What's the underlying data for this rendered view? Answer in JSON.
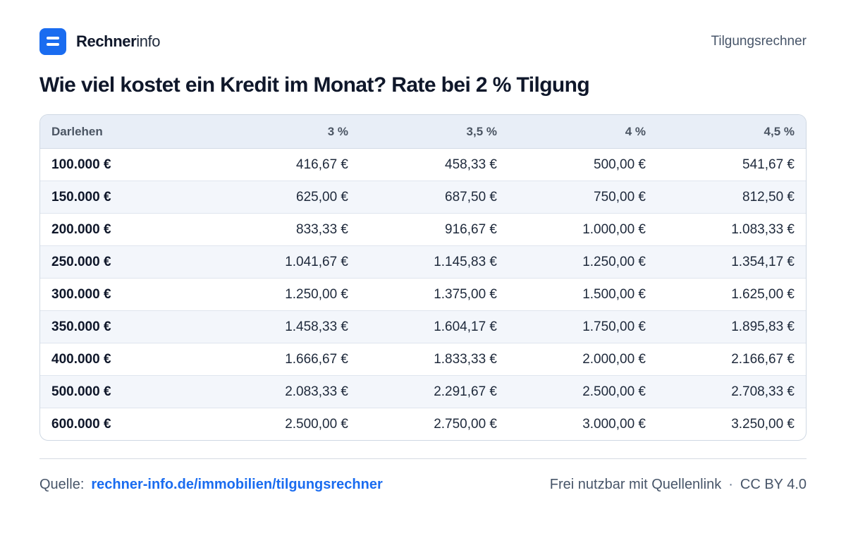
{
  "brand": {
    "name_bold": "Rechner",
    "name_light": "info",
    "icon": "menu-lines-icon"
  },
  "header": {
    "right_label": "Tilgungsrechner"
  },
  "title": "Wie viel kostet ein Kredit im Monat? Rate bei 2 % Tilgung",
  "table": {
    "columns": [
      "Darlehen",
      "3 %",
      "3,5 %",
      "4 %",
      "4,5 %"
    ],
    "rows": [
      [
        "100.000 €",
        "416,67 €",
        "458,33 €",
        "500,00 €",
        "541,67 €"
      ],
      [
        "150.000 €",
        "625,00 €",
        "687,50 €",
        "750,00 €",
        "812,50 €"
      ],
      [
        "200.000 €",
        "833,33 €",
        "916,67 €",
        "1.000,00 €",
        "1.083,33 €"
      ],
      [
        "250.000 €",
        "1.041,67 €",
        "1.145,83 €",
        "1.250,00 €",
        "1.354,17 €"
      ],
      [
        "300.000 €",
        "1.250,00 €",
        "1.375,00 €",
        "1.500,00 €",
        "1.625,00 €"
      ],
      [
        "350.000 €",
        "1.458,33 €",
        "1.604,17 €",
        "1.750,00 €",
        "1.895,83 €"
      ],
      [
        "400.000 €",
        "1.666,67 €",
        "1.833,33 €",
        "2.000,00 €",
        "2.166,67 €"
      ],
      [
        "500.000 €",
        "2.083,33 €",
        "2.291,67 €",
        "2.500,00 €",
        "2.708,33 €"
      ],
      [
        "600.000 €",
        "2.500,00 €",
        "2.750,00 €",
        "3.000,00 €",
        "3.250,00 €"
      ]
    ]
  },
  "footer": {
    "source_label": "Quelle:",
    "source_link": "rechner-info.de/immobilien/tilgungsrechner",
    "usage": "Frei nutzbar mit Quellenlink",
    "separator": "·",
    "license": "CC BY 4.0"
  },
  "colors": {
    "accent": "#1a6cf0",
    "header_bg": "#e8eef7",
    "stripe_bg": "#f3f6fb"
  }
}
